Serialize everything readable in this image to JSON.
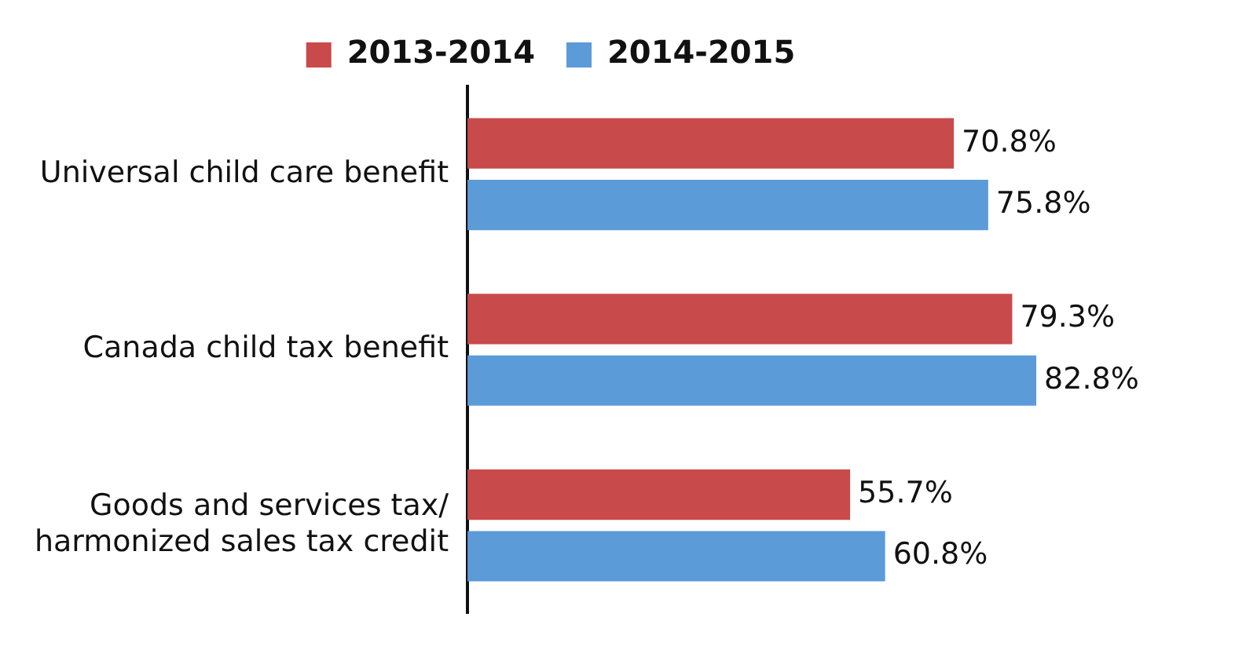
{
  "chart_data": {
    "type": "bar",
    "orientation": "horizontal",
    "legend": "top",
    "categories": [
      "Universal child care benefit",
      "Canada child tax benefit",
      [
        "Goods and services tax/",
        "harmonized sales tax credit"
      ]
    ],
    "series": [
      {
        "name": "2013-2014",
        "color": "#c94a4a",
        "values": [
          70.8,
          79.3,
          55.7
        ],
        "value_labels": [
          "70.8%",
          "79.3%",
          "55.7%"
        ]
      },
      {
        "name": "2014-2015",
        "color": "#5b9bd8",
        "values": [
          75.8,
          82.8,
          60.8
        ],
        "value_labels": [
          "75.8%",
          "82.8%",
          "60.8%"
        ]
      }
    ]
  }
}
